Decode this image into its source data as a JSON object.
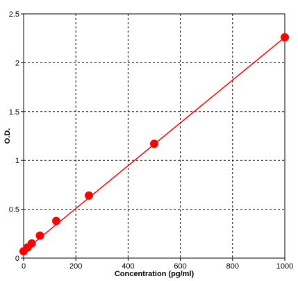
{
  "chart_data": {
    "type": "scatter",
    "title": "",
    "xlabel": "Concentration (pg/ml)",
    "ylabel": "O.D.",
    "xlim": [
      0,
      1000
    ],
    "ylim": [
      0,
      2.5
    ],
    "x_ticks": [
      0,
      200,
      400,
      600,
      800,
      1000
    ],
    "y_ticks": [
      0,
      0.5,
      1,
      1.5,
      2,
      2.5
    ],
    "x_tick_labels": [
      "0",
      "200",
      "400",
      "600",
      "800",
      "1000"
    ],
    "y_tick_labels": [
      "0",
      "0.5",
      "1",
      "1.5",
      "2",
      "2.5"
    ],
    "grid": true,
    "legend": "none",
    "series": [
      {
        "points": [
          {
            "x": 0,
            "y": 0.07
          },
          {
            "x": 15.6,
            "y": 0.11
          },
          {
            "x": 31.2,
            "y": 0.15
          },
          {
            "x": 62.5,
            "y": 0.23
          },
          {
            "x": 125,
            "y": 0.38
          },
          {
            "x": 250,
            "y": 0.64
          },
          {
            "x": 500,
            "y": 1.17
          },
          {
            "x": 1000,
            "y": 2.26
          }
        ],
        "fit_line": [
          {
            "x": 0,
            "y": 0.07
          },
          {
            "x": 1000,
            "y": 2.26
          }
        ]
      }
    ],
    "colors": {
      "series": "#ff0000",
      "grid": "#000000",
      "axis": "#000000"
    }
  }
}
